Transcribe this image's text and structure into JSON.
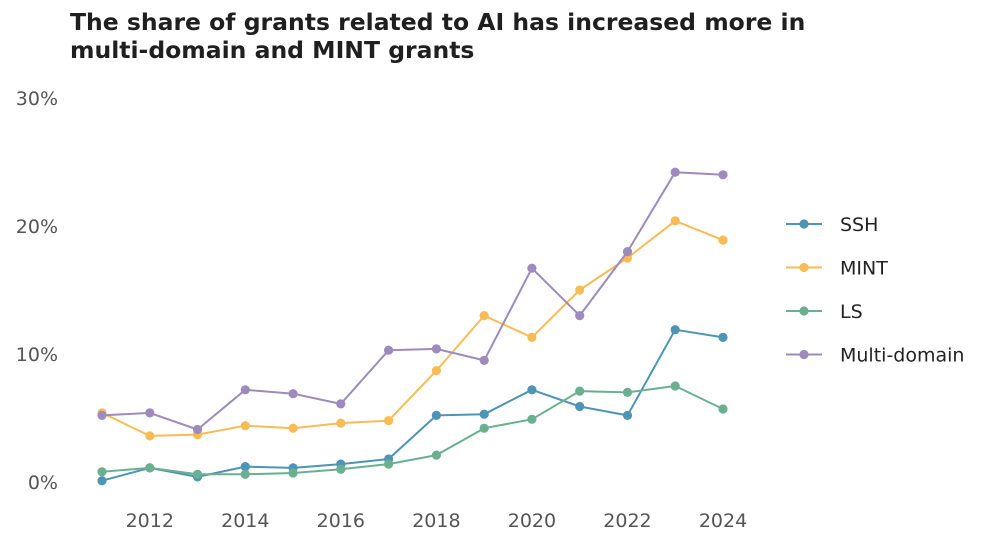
{
  "chart_data": {
    "type": "line",
    "title_lines": [
      "The share of grants related to AI has increased more in",
      "multi-domain and MINT grants"
    ],
    "xlabel": "",
    "ylabel": "",
    "x": [
      2011,
      2012,
      2013,
      2014,
      2015,
      2016,
      2017,
      2018,
      2019,
      2020,
      2021,
      2022,
      2023,
      2024
    ],
    "xlim": [
      2011,
      2024
    ],
    "ylim": [
      0,
      30
    ],
    "x_ticks": [
      {
        "value": 2012,
        "label": "2012"
      },
      {
        "value": 2014,
        "label": "2014"
      },
      {
        "value": 2016,
        "label": "2016"
      },
      {
        "value": 2018,
        "label": "2018"
      },
      {
        "value": 2020,
        "label": "2020"
      },
      {
        "value": 2022,
        "label": "2022"
      },
      {
        "value": 2024,
        "label": "2024"
      }
    ],
    "y_ticks": [
      {
        "value": 0,
        "label": "0%"
      },
      {
        "value": 10,
        "label": "10%"
      },
      {
        "value": 20,
        "label": "20%"
      },
      {
        "value": 30,
        "label": "30%"
      }
    ],
    "grid": false,
    "legend_position": "right",
    "series": [
      {
        "name": "SSH",
        "color": "#4e94b4",
        "values": [
          0.1,
          1.1,
          0.4,
          1.2,
          1.1,
          1.4,
          1.8,
          5.2,
          5.3,
          7.2,
          5.9,
          5.2,
          11.9,
          11.3
        ]
      },
      {
        "name": "MINT",
        "color": "#f7bc55",
        "values": [
          5.4,
          3.6,
          3.7,
          4.4,
          4.2,
          4.6,
          4.8,
          8.7,
          13.0,
          11.3,
          15.0,
          17.5,
          20.4,
          18.9
        ]
      },
      {
        "name": "LS",
        "color": "#6ab090",
        "values": [
          0.8,
          1.1,
          0.6,
          0.6,
          0.7,
          1.0,
          1.4,
          2.1,
          4.2,
          4.9,
          7.1,
          7.0,
          7.5,
          5.7
        ]
      },
      {
        "name": "Multi-domain",
        "color": "#9c8bbb",
        "values": [
          5.2,
          5.4,
          4.1,
          7.2,
          6.9,
          6.1,
          10.3,
          10.4,
          9.5,
          16.7,
          13.0,
          18.0,
          24.2,
          24.0
        ]
      }
    ]
  }
}
